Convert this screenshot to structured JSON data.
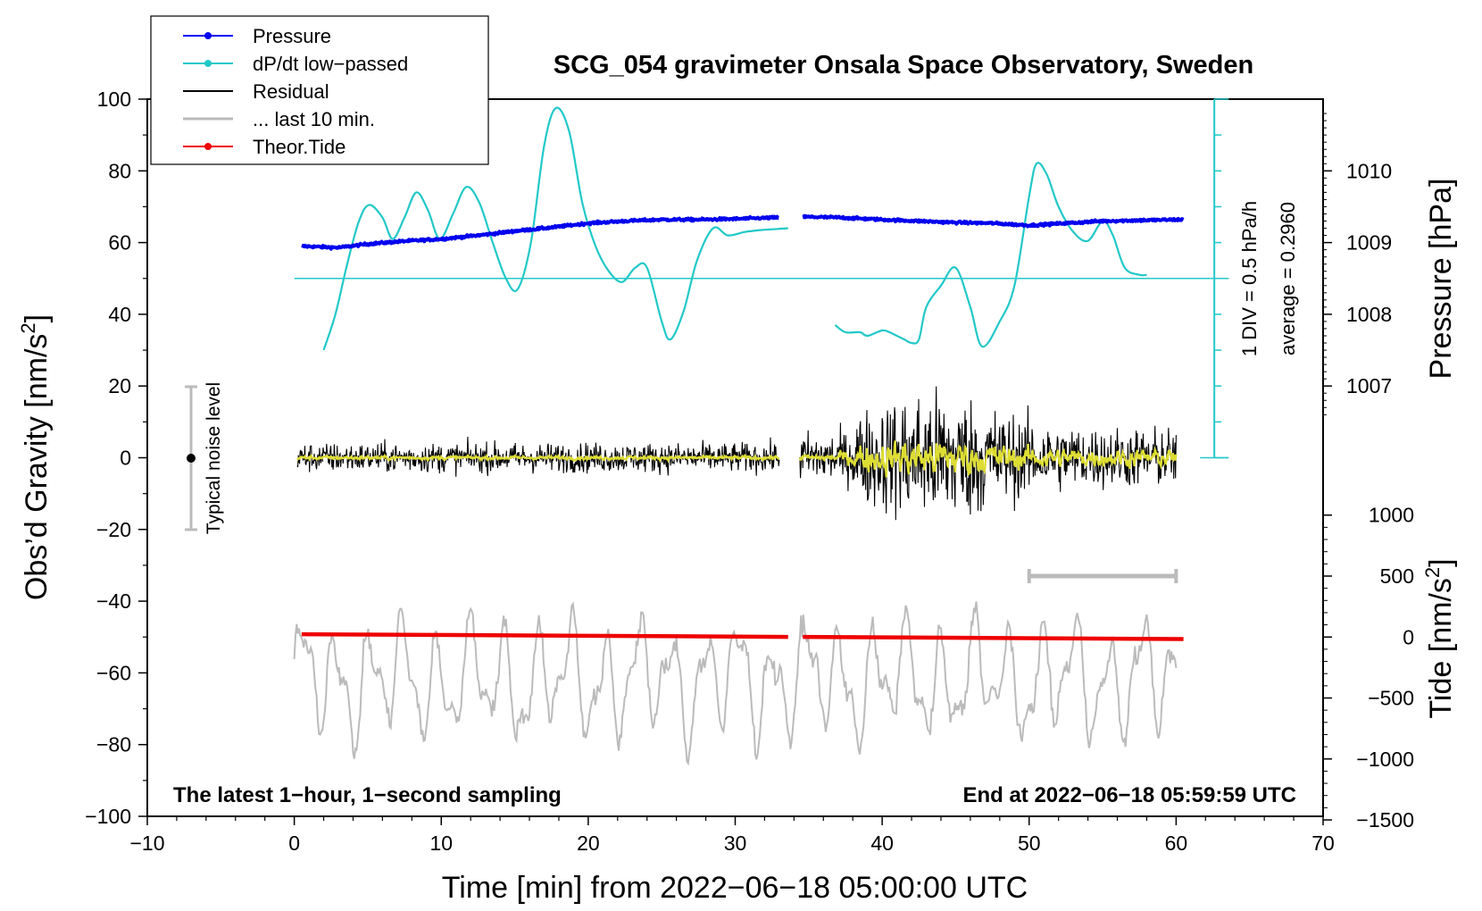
{
  "chart_data": {
    "type": "line",
    "title": "SCG_054 gravimeter Onsala Space Observatory, Sweden",
    "xlabel": "Time [min] from 2022−06−18 05:00:00 UTC",
    "ylabel": "Obs’d Gravity [nm/s",
    "ylabel_sup": "2",
    "ylabel_end": "]",
    "y2label": "Pressure [hPa]",
    "y3label": "Tide [nm/s",
    "y3label_sup": "2",
    "y3label_end": "]",
    "xlim": [
      -10,
      70
    ],
    "ylim": [
      -100,
      100
    ],
    "xticks": [
      "−10",
      "0",
      "10",
      "20",
      "30",
      "40",
      "50",
      "60",
      "70"
    ],
    "yticks": [
      "−100",
      "−80",
      "−60",
      "−40",
      "−20",
      "0",
      "20",
      "40",
      "60",
      "80",
      "100"
    ],
    "pressure_axis": {
      "ticks": [
        "1007",
        "1008",
        "1009",
        "1010"
      ],
      "values": [
        1007,
        1008,
        1009,
        1010
      ]
    },
    "tide_axis": {
      "ticks": [
        "−1500",
        "−1000",
        "−500",
        "0",
        "500",
        "1000"
      ],
      "values": [
        -1500,
        -1000,
        -500,
        0,
        500,
        1000
      ]
    },
    "left_note": "The latest 1−hour, 1−second sampling",
    "right_note": "End at 2022−06−18 05:59:59 UTC",
    "noise_label": "Typical noise level",
    "noise_range": [
      -20,
      20
    ],
    "dpdt_scale": "1 DIV = 0.5 hPa/h",
    "dpdt_average": "average = 0.2960",
    "last10_bar": [
      50,
      60
    ],
    "legend": [
      {
        "label": "Pressure",
        "color": "#0000ee",
        "marker": true
      },
      {
        "label": "dP/dt low−passed",
        "color": "#22c8c8",
        "marker": true
      },
      {
        "label": "Residual",
        "color": "#000000",
        "marker": false
      },
      {
        "label": "... last 10 min.",
        "color": "#bbbbbb",
        "marker": false
      },
      {
        "label": "Theor.Tide",
        "color": "#ee0000",
        "marker": true
      }
    ],
    "series": [
      {
        "name": "Pressure",
        "units": "hPa",
        "x": [
          0.5,
          3,
          5,
          7.5,
          10,
          12.5,
          15,
          17.5,
          20,
          22.5,
          25,
          27.5,
          30,
          33,
          34.5,
          37,
          40,
          42.5,
          45,
          47.5,
          50,
          52.5,
          55,
          57.5,
          60,
          60.5
        ],
        "y": [
          1008.95,
          1008.93,
          1008.98,
          1009.02,
          1009.05,
          1009.1,
          1009.16,
          1009.21,
          1009.27,
          1009.3,
          1009.32,
          1009.32,
          1009.33,
          1009.35,
          1009.36,
          1009.35,
          1009.32,
          1009.3,
          1009.28,
          1009.27,
          1009.24,
          1009.27,
          1009.3,
          1009.31,
          1009.32,
          1009.32
        ]
      },
      {
        "name": "dP/dt low-passed",
        "units": "y",
        "x": [
          2,
          2.8,
          3.6,
          4.4,
          5.1,
          6,
          6.7,
          7.5,
          8.3,
          9.1,
          9.9,
          10.8,
          11.7,
          12.6,
          13.5,
          14.4,
          15.2,
          16.1,
          17,
          17.8,
          18.7,
          19.6,
          20.5,
          21.4,
          22.3,
          23.2,
          24,
          25,
          25.6,
          26.5,
          27.4,
          28.5,
          29.5,
          30.7,
          31.8,
          32.9,
          33.6
        ],
        "y": [
          30,
          40,
          54,
          66,
          70.5,
          67,
          61,
          67,
          74,
          69,
          61,
          68,
          75.5,
          71,
          60,
          50,
          47,
          60,
          87,
          97.5,
          91,
          71,
          59,
          52,
          49,
          53,
          53,
          38,
          33,
          41,
          55,
          64,
          62,
          63,
          63.5,
          63.8,
          64
        ]
      },
      {
        "name": "dP/dt low-passed (b)",
        "units": "y",
        "x": [
          36.8,
          37.5,
          38.5,
          39,
          40,
          40.5,
          41,
          41.5,
          42,
          42.5,
          43,
          44,
          45,
          46,
          46.8,
          48,
          49,
          50,
          50.5,
          51.2,
          52,
          53,
          54,
          55,
          55.7,
          56.5,
          57.5,
          58
        ],
        "y": [
          37,
          35,
          35,
          34,
          35.5,
          35,
          34,
          33,
          32,
          33,
          42,
          48,
          53,
          42,
          31,
          38,
          48,
          73,
          82,
          79,
          70,
          63,
          60.5,
          66,
          62,
          53,
          51,
          51
        ]
      }
    ]
  }
}
